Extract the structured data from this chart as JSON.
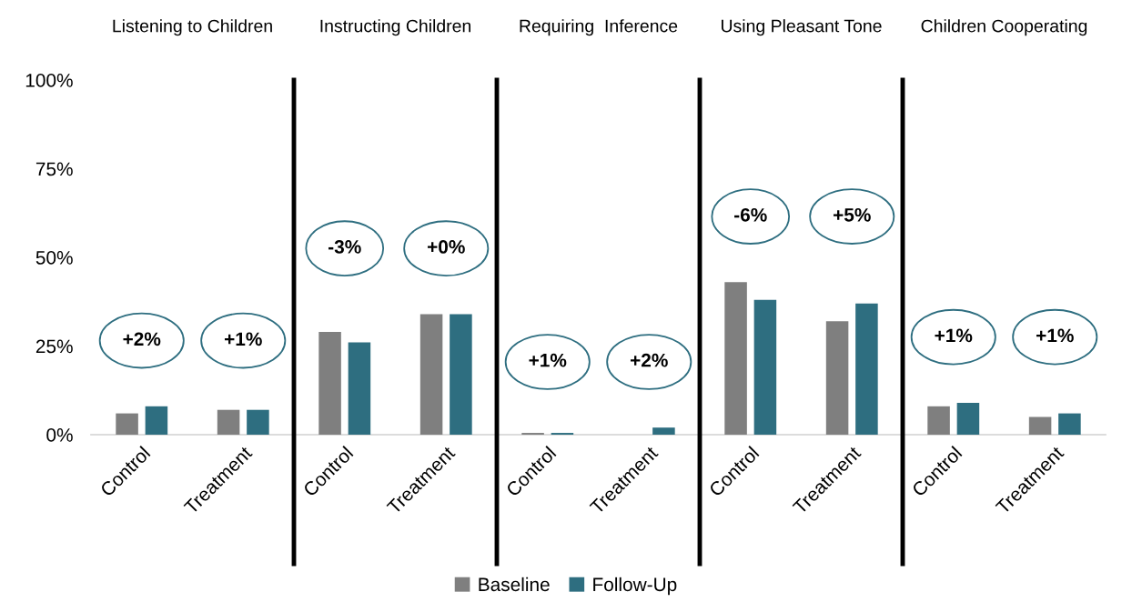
{
  "chart_data": [
    {
      "type": "bar",
      "title": "Listening to Children",
      "categories": [
        "Control",
        "Treatment"
      ],
      "ylim": [
        0,
        100
      ],
      "yticks": [
        {
          "value": 0,
          "label": "0%"
        },
        {
          "value": 25,
          "label": "25%"
        },
        {
          "value": 50,
          "label": "50%"
        },
        {
          "value": 75,
          "label": "75%"
        },
        {
          "value": 100,
          "label": "100%"
        }
      ],
      "legend": "bottom",
      "series": [
        {
          "name": "Baseline",
          "color": "#7f7f7f",
          "values": [
            6,
            7
          ]
        },
        {
          "name": "Follow-Up",
          "color": "#2e6e80",
          "values": [
            8,
            7
          ]
        }
      ],
      "annotations": [
        "+2%",
        "+1%"
      ]
    },
    {
      "type": "bar",
      "title": "Instructing Children",
      "categories": [
        "Control",
        "Treatment"
      ],
      "ylim": [
        0,
        100
      ],
      "tick_labels": "x",
      "legend": "bottom",
      "series": [
        {
          "name": "Baseline",
          "color": "#7f7f7f",
          "values": [
            29,
            34
          ]
        },
        {
          "name": "Follow-Up",
          "color": "#2e6e80",
          "values": [
            26,
            34
          ]
        }
      ],
      "annotations": [
        "-3%",
        "+0%"
      ]
    },
    {
      "type": "bar",
      "title": "Requiring  Inference",
      "categories": [
        "Control",
        "Treatment"
      ],
      "ylim": [
        0,
        100
      ],
      "tick_labels": "x",
      "legend": "bottom",
      "series": [
        {
          "name": "Baseline",
          "color": "#7f7f7f",
          "values": [
            0.5,
            0
          ]
        },
        {
          "name": "Follow-Up",
          "color": "#2e6e80",
          "values": [
            0.5,
            2
          ]
        }
      ],
      "annotations": [
        "+1%",
        "+2%"
      ]
    },
    {
      "type": "bar",
      "title": "Using Pleasant Tone",
      "categories": [
        "Control",
        "Treatment"
      ],
      "ylim": [
        0,
        100
      ],
      "tick_labels": "x",
      "legend": "bottom",
      "series": [
        {
          "name": "Baseline",
          "color": "#7f7f7f",
          "values": [
            43,
            32
          ]
        },
        {
          "name": "Follow-Up",
          "color": "#2e6e80",
          "values": [
            38,
            37
          ]
        }
      ],
      "annotations": [
        "-6%",
        "+5%"
      ]
    },
    {
      "type": "bar",
      "title": "Children Cooperating",
      "categories": [
        "Control",
        "Treatment"
      ],
      "ylim": [
        0,
        100
      ],
      "tick_labels": "x",
      "legend": "bottom",
      "series": [
        {
          "name": "Baseline",
          "color": "#7f7f7f",
          "values": [
            8,
            5
          ]
        },
        {
          "name": "Follow-Up",
          "color": "#2e6e80",
          "values": [
            9,
            6
          ]
        }
      ],
      "annotations": [
        "+1%",
        "+1%"
      ]
    }
  ]
}
